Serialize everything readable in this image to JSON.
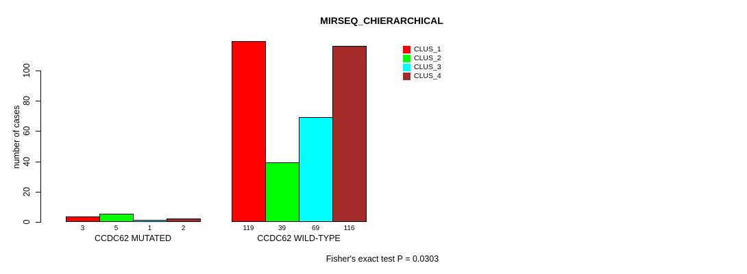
{
  "title": "MIRSEQ_CHIERARCHICAL",
  "y_axis": {
    "label": "number of cases",
    "ticks": [
      "0",
      "20",
      "40",
      "60",
      "80",
      "100"
    ]
  },
  "footnote": "Fisher's exact test P = 0.0303",
  "legend": {
    "items": [
      {
        "label": "CLUS_1",
        "color": "#FF0000"
      },
      {
        "label": "CLUS_2",
        "color": "#00FF00"
      },
      {
        "label": "CLUS_3",
        "color": "#00FFFF"
      },
      {
        "label": "CLUS_4",
        "color": "#A52A2A"
      }
    ]
  },
  "chart_data": {
    "type": "bar",
    "title": "MIRSEQ_CHIERARCHICAL",
    "xlabel": "",
    "ylabel": "number of cases",
    "categories": [
      "CCDC62 MUTATED",
      "CCDC62 WILD-TYPE"
    ],
    "series": [
      {
        "name": "CLUS_1",
        "color": "#FF0000",
        "values": [
          3,
          119
        ]
      },
      {
        "name": "CLUS_2",
        "color": "#00FF00",
        "values": [
          5,
          39
        ]
      },
      {
        "name": "CLUS_3",
        "color": "#00FFFF",
        "values": [
          1,
          69
        ]
      },
      {
        "name": "CLUS_4",
        "color": "#A52A2A",
        "values": [
          2,
          116
        ]
      }
    ],
    "yticks": [
      0,
      20,
      40,
      60,
      80,
      100
    ],
    "ylim": [
      0,
      120
    ],
    "grid": false,
    "bar_value_labels": true,
    "legend_position": "top-right",
    "annotation": "Fisher's exact test P = 0.0303"
  }
}
